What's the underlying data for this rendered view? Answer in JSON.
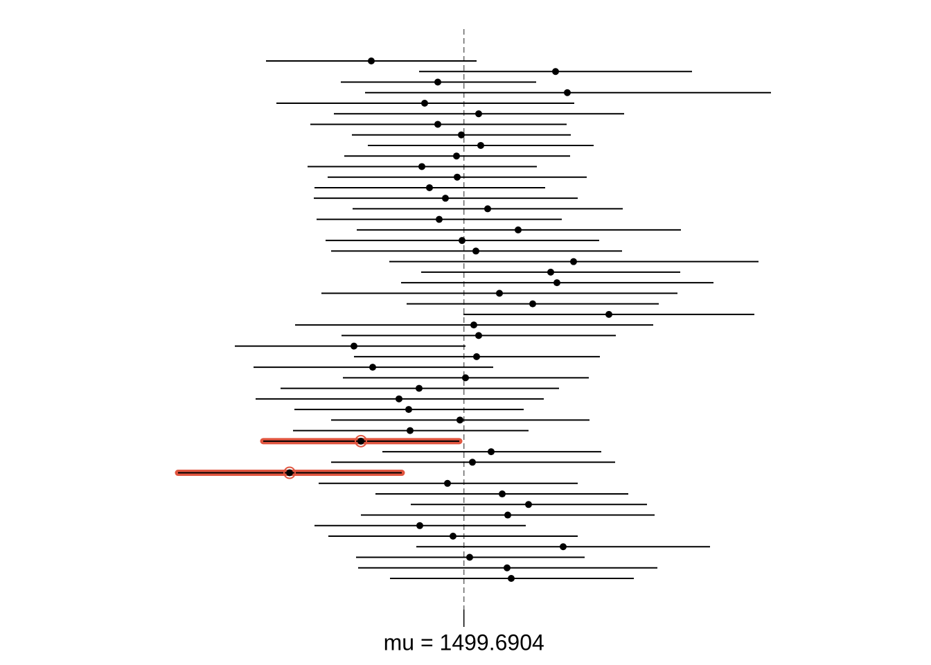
{
  "chart_data": {
    "type": "interval",
    "xlim": [
      1080,
      1960
    ],
    "xticks": [
      {
        "value": 1499.6904,
        "label": "mu =  1499.6904"
      }
    ],
    "color": "#000000",
    "miss_color": "#e0553f",
    "lower": [
      1214,
      1435,
      1322,
      1357,
      1229,
      1312,
      1278,
      1338,
      1361,
      1327,
      1274,
      1303,
      1284,
      1283,
      1339,
      1287,
      1345,
      1300,
      1308,
      1392,
      1438,
      1409,
      1294,
      1417,
      1499,
      1256,
      1323,
      1169,
      1341,
      1196,
      1325,
      1235,
      1199,
      1255,
      1308,
      1253,
      1210,
      1382,
      1308,
      1087,
      1290,
      1372,
      1423,
      1351,
      1284,
      1304,
      1431,
      1344,
      1347,
      1393
    ],
    "estimate": [
      1366,
      1632,
      1462,
      1649,
      1443,
      1521,
      1462,
      1496,
      1524,
      1489,
      1439,
      1490,
      1450,
      1473,
      1534,
      1464,
      1578,
      1497,
      1517,
      1658,
      1625,
      1634,
      1551,
      1599,
      1709,
      1514,
      1521,
      1341,
      1518,
      1368,
      1502,
      1435,
      1406,
      1420,
      1494,
      1422,
      1351,
      1539,
      1512,
      1248,
      1476,
      1555,
      1593,
      1563,
      1436,
      1484,
      1643,
      1508,
      1562,
      1568
    ],
    "upper": [
      1518,
      1829,
      1604,
      1943,
      1659,
      1731,
      1648,
      1654,
      1687,
      1653,
      1605,
      1677,
      1617,
      1664,
      1729,
      1641,
      1813,
      1695,
      1728,
      1925,
      1812,
      1860,
      1808,
      1781,
      1919,
      1773,
      1719,
      1502,
      1696,
      1542,
      1680,
      1637,
      1615,
      1586,
      1681,
      1593,
      1493,
      1698,
      1718,
      1410,
      1664,
      1737,
      1764,
      1775,
      1589,
      1664,
      1855,
      1674,
      1779,
      1745
    ]
  }
}
